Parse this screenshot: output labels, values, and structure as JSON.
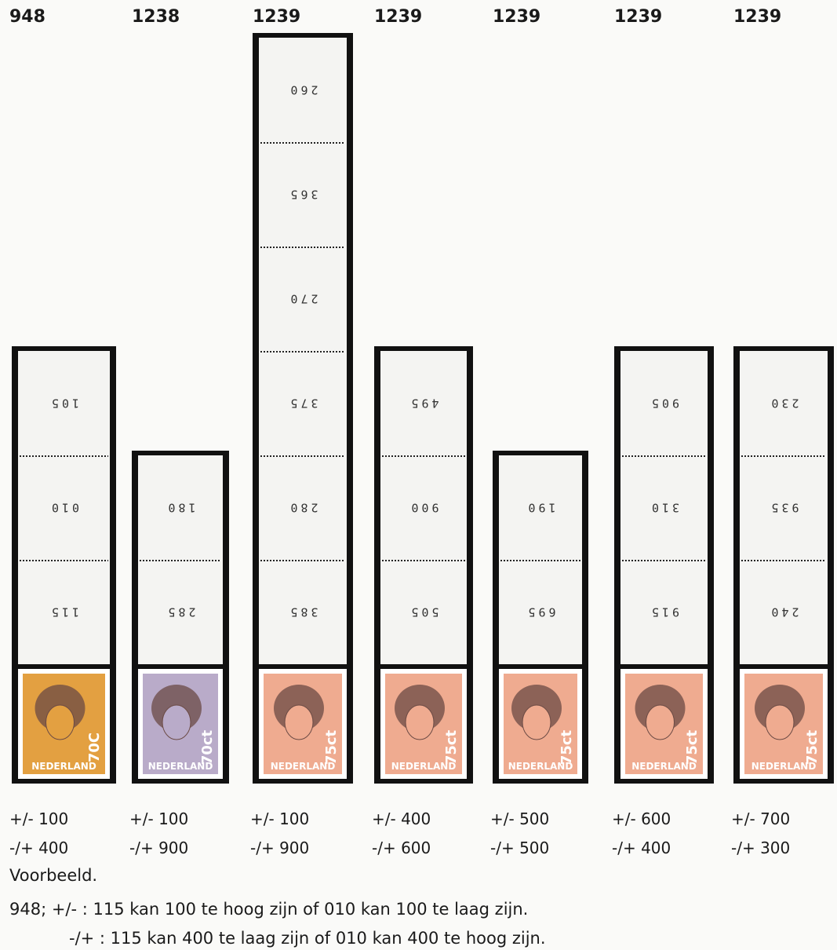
{
  "columns": [
    {
      "catalog": "948",
      "segments": [
        "105",
        "010",
        "115"
      ],
      "stamp": {
        "country": "NEDERLAND",
        "value": "70C",
        "color": "#e3a041"
      },
      "notes": [
        "+/- 100",
        "-/+ 400"
      ]
    },
    {
      "catalog": "1238",
      "segments": [
        "180",
        "285"
      ],
      "stamp": {
        "country": "NEDERLAND",
        "value": "70ct",
        "color": "#b9abc9"
      },
      "notes": [
        "+/- 100",
        "-/+ 900"
      ]
    },
    {
      "catalog": "1239",
      "segments": [
        "260",
        "365",
        "270",
        "375",
        "280",
        "385"
      ],
      "stamp": {
        "country": "NEDERLAND",
        "value": "75ct",
        "color": "#efab90"
      },
      "notes": [
        "+/- 100",
        "-/+ 900"
      ]
    },
    {
      "catalog": "1239",
      "segments": [
        "495",
        "900",
        "505"
      ],
      "stamp": {
        "country": "NEDERLAND",
        "value": "75ct",
        "color": "#efab90"
      },
      "notes": [
        "+/- 400",
        "-/+ 600"
      ]
    },
    {
      "catalog": "1239",
      "segments": [
        "190",
        "695"
      ],
      "stamp": {
        "country": "NEDERLAND",
        "value": "75ct",
        "color": "#efab90"
      },
      "notes": [
        "+/- 500",
        "-/+ 500"
      ]
    },
    {
      "catalog": "1239",
      "segments": [
        "905",
        "310",
        "915"
      ],
      "stamp": {
        "country": "NEDERLAND",
        "value": "75ct",
        "color": "#efab90"
      },
      "notes": [
        "+/- 600",
        "-/+ 400"
      ]
    },
    {
      "catalog": "1239",
      "segments": [
        "230",
        "935",
        "240"
      ],
      "stamp": {
        "country": "NEDERLAND",
        "value": "75ct",
        "color": "#efab90"
      },
      "notes": [
        "+/- 700",
        "-/+ 300"
      ]
    }
  ],
  "footer": {
    "heading": "Voorbeeld.",
    "lines": [
      "948; +/- : 115 kan 100 te hoog zijn of 010 kan 100 te laag zijn.",
      "-/+ : 115 kan 400 te laag zijn of 010 kan 400 te hoog zijn."
    ]
  }
}
